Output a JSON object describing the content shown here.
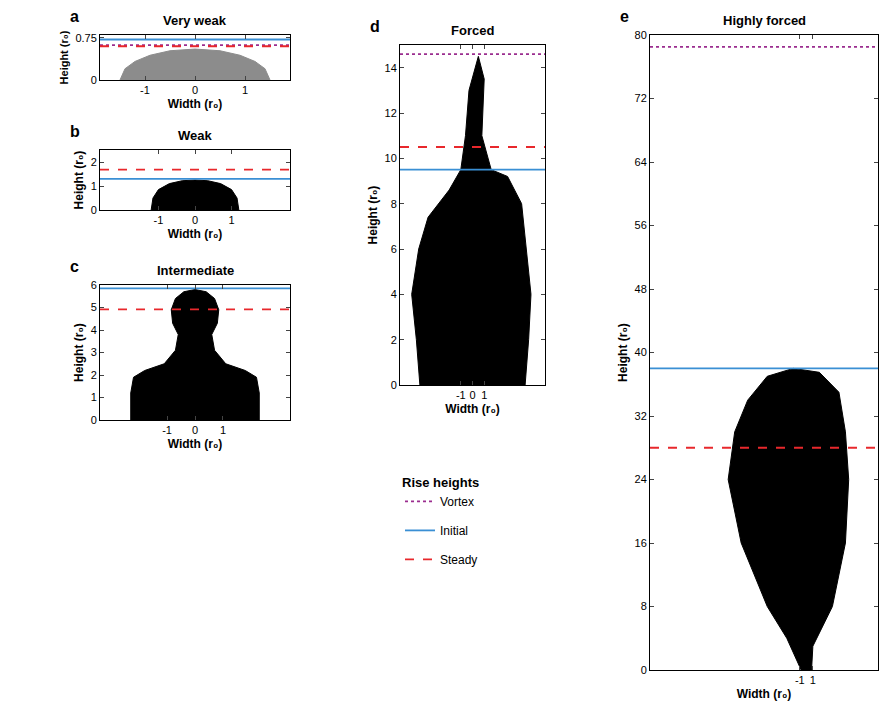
{
  "chart_data": [
    {
      "type": "line",
      "letter": "a",
      "title": "Very weak",
      "x_label": "Width (r₀)",
      "y_label": "Height (r₀)",
      "xlim": [
        -1.9,
        1.9
      ],
      "xticks": [
        -1,
        0,
        1
      ],
      "ylim": [
        0,
        0.8
      ],
      "yticks": [
        0,
        0.75
      ],
      "grid": false,
      "heights": {
        "Vortex": 0.62,
        "Initial": 0.72,
        "Steady": 0.6
      },
      "plume": {
        "color": "#8c8c8c",
        "x": [
          -1.5,
          -1.4,
          -1.2,
          -0.9,
          -0.5,
          0,
          0.5,
          0.9,
          1.2,
          1.4,
          1.5
        ],
        "y": [
          0,
          0.2,
          0.33,
          0.44,
          0.52,
          0.55,
          0.52,
          0.44,
          0.33,
          0.2,
          0
        ]
      }
    },
    {
      "type": "line",
      "letter": "b",
      "title": "Weak",
      "x_label": "Width (r₀)",
      "y_label": "Height (r₀)",
      "xlim": [
        -2.6,
        2.6
      ],
      "xticks": [
        -1,
        0,
        1
      ],
      "ylim": [
        0,
        2.5
      ],
      "yticks": [
        0,
        1,
        2
      ],
      "grid": false,
      "heights": {
        "Initial": 1.3,
        "Steady": 1.68
      },
      "plume": {
        "color": "#000000",
        "x": [
          -1.2,
          -1.15,
          -1.0,
          -0.7,
          -0.35,
          0,
          0.35,
          0.7,
          1.0,
          1.15,
          1.2
        ],
        "y": [
          0,
          0.5,
          0.85,
          1.1,
          1.22,
          1.25,
          1.22,
          1.1,
          0.85,
          0.5,
          0
        ]
      }
    },
    {
      "type": "line",
      "letter": "c",
      "title": "Intermediate",
      "x_label": "Width (r₀)",
      "y_label": "Height (r₀)",
      "xlim": [
        -3.4,
        3.4
      ],
      "xticks": [
        -1,
        0,
        1
      ],
      "ylim": [
        0,
        6
      ],
      "yticks": [
        0,
        1,
        2,
        3,
        4,
        5,
        6
      ],
      "grid": false,
      "heights": {
        "Initial": 5.85,
        "Steady": 4.92
      },
      "plume": {
        "color": "#000000",
        "x": [
          -2.3,
          -2.3,
          -2.2,
          -1.8,
          -1.1,
          -0.7,
          -0.6,
          -0.8,
          -0.85,
          -0.7,
          -0.4,
          0,
          0.4,
          0.7,
          0.85,
          0.8,
          0.6,
          0.7,
          1.1,
          1.8,
          2.2,
          2.3,
          2.3
        ],
        "y": [
          0,
          1.2,
          1.9,
          2.2,
          2.5,
          3.1,
          3.8,
          4.3,
          4.9,
          5.4,
          5.7,
          5.8,
          5.7,
          5.4,
          4.9,
          4.3,
          3.8,
          3.1,
          2.5,
          2.2,
          1.9,
          1.2,
          0
        ]
      }
    },
    {
      "type": "line",
      "letter": "d",
      "title": "Forced",
      "x_label": "Width (r₀)",
      "y_label": "Height (r₀)",
      "xlim": [
        -6.2,
        6.2
      ],
      "xticks": [
        -1,
        0,
        1
      ],
      "ylim": [
        0,
        15
      ],
      "yticks": [
        0,
        2,
        4,
        6,
        8,
        10,
        12,
        14
      ],
      "grid": false,
      "heights": {
        "Vortex": 14.6,
        "Initial": 9.5,
        "Steady": 10.5
      },
      "plume": {
        "color": "#000000",
        "x": [
          -4.5,
          -4.8,
          -5.2,
          -4.6,
          -3.8,
          -2,
          -1,
          -0.6,
          -0.3,
          0.5,
          1,
          0.8,
          1.6,
          3,
          4.2,
          4.6,
          5,
          4.8,
          4.5
        ],
        "y": [
          0,
          2,
          4,
          6,
          7.4,
          8.6,
          9.5,
          11,
          13,
          14.5,
          13.5,
          11,
          9.5,
          9.2,
          8,
          6,
          4,
          2,
          0
        ]
      }
    },
    {
      "type": "line",
      "letter": "e",
      "title": "Highly forced",
      "x_label": "Width (r₀)",
      "y_label": "Height (r₀)",
      "xlim": [
        -24,
        11
      ],
      "xticks": [
        -1,
        1
      ],
      "ylim": [
        0,
        80
      ],
      "yticks": [
        0,
        8,
        16,
        24,
        32,
        40,
        48,
        56,
        64,
        72,
        80
      ],
      "grid": false,
      "heights": {
        "Vortex": 78.5,
        "Initial": 38,
        "Steady": 28
      },
      "plume": {
        "color": "#000000",
        "x": [
          -0.8,
          -3,
          -6,
          -10,
          -12,
          -11,
          -9,
          -6,
          -2,
          2,
          5,
          6,
          6.5,
          6,
          4,
          1,
          0.8
        ],
        "y": [
          0,
          4,
          8,
          16,
          24,
          30,
          34,
          37,
          38,
          37.5,
          35,
          30,
          24,
          16,
          8,
          3,
          0
        ]
      }
    }
  ],
  "legend_title": "Rise heights",
  "series": [
    {
      "name": "Vortex",
      "color": "#9b2d8f",
      "line_style": "dotted"
    },
    {
      "name": "Initial",
      "color": "#3a8fd4",
      "line_style": "solid"
    },
    {
      "name": "Steady",
      "color": "#e8282c",
      "line_style": "dashed"
    }
  ]
}
